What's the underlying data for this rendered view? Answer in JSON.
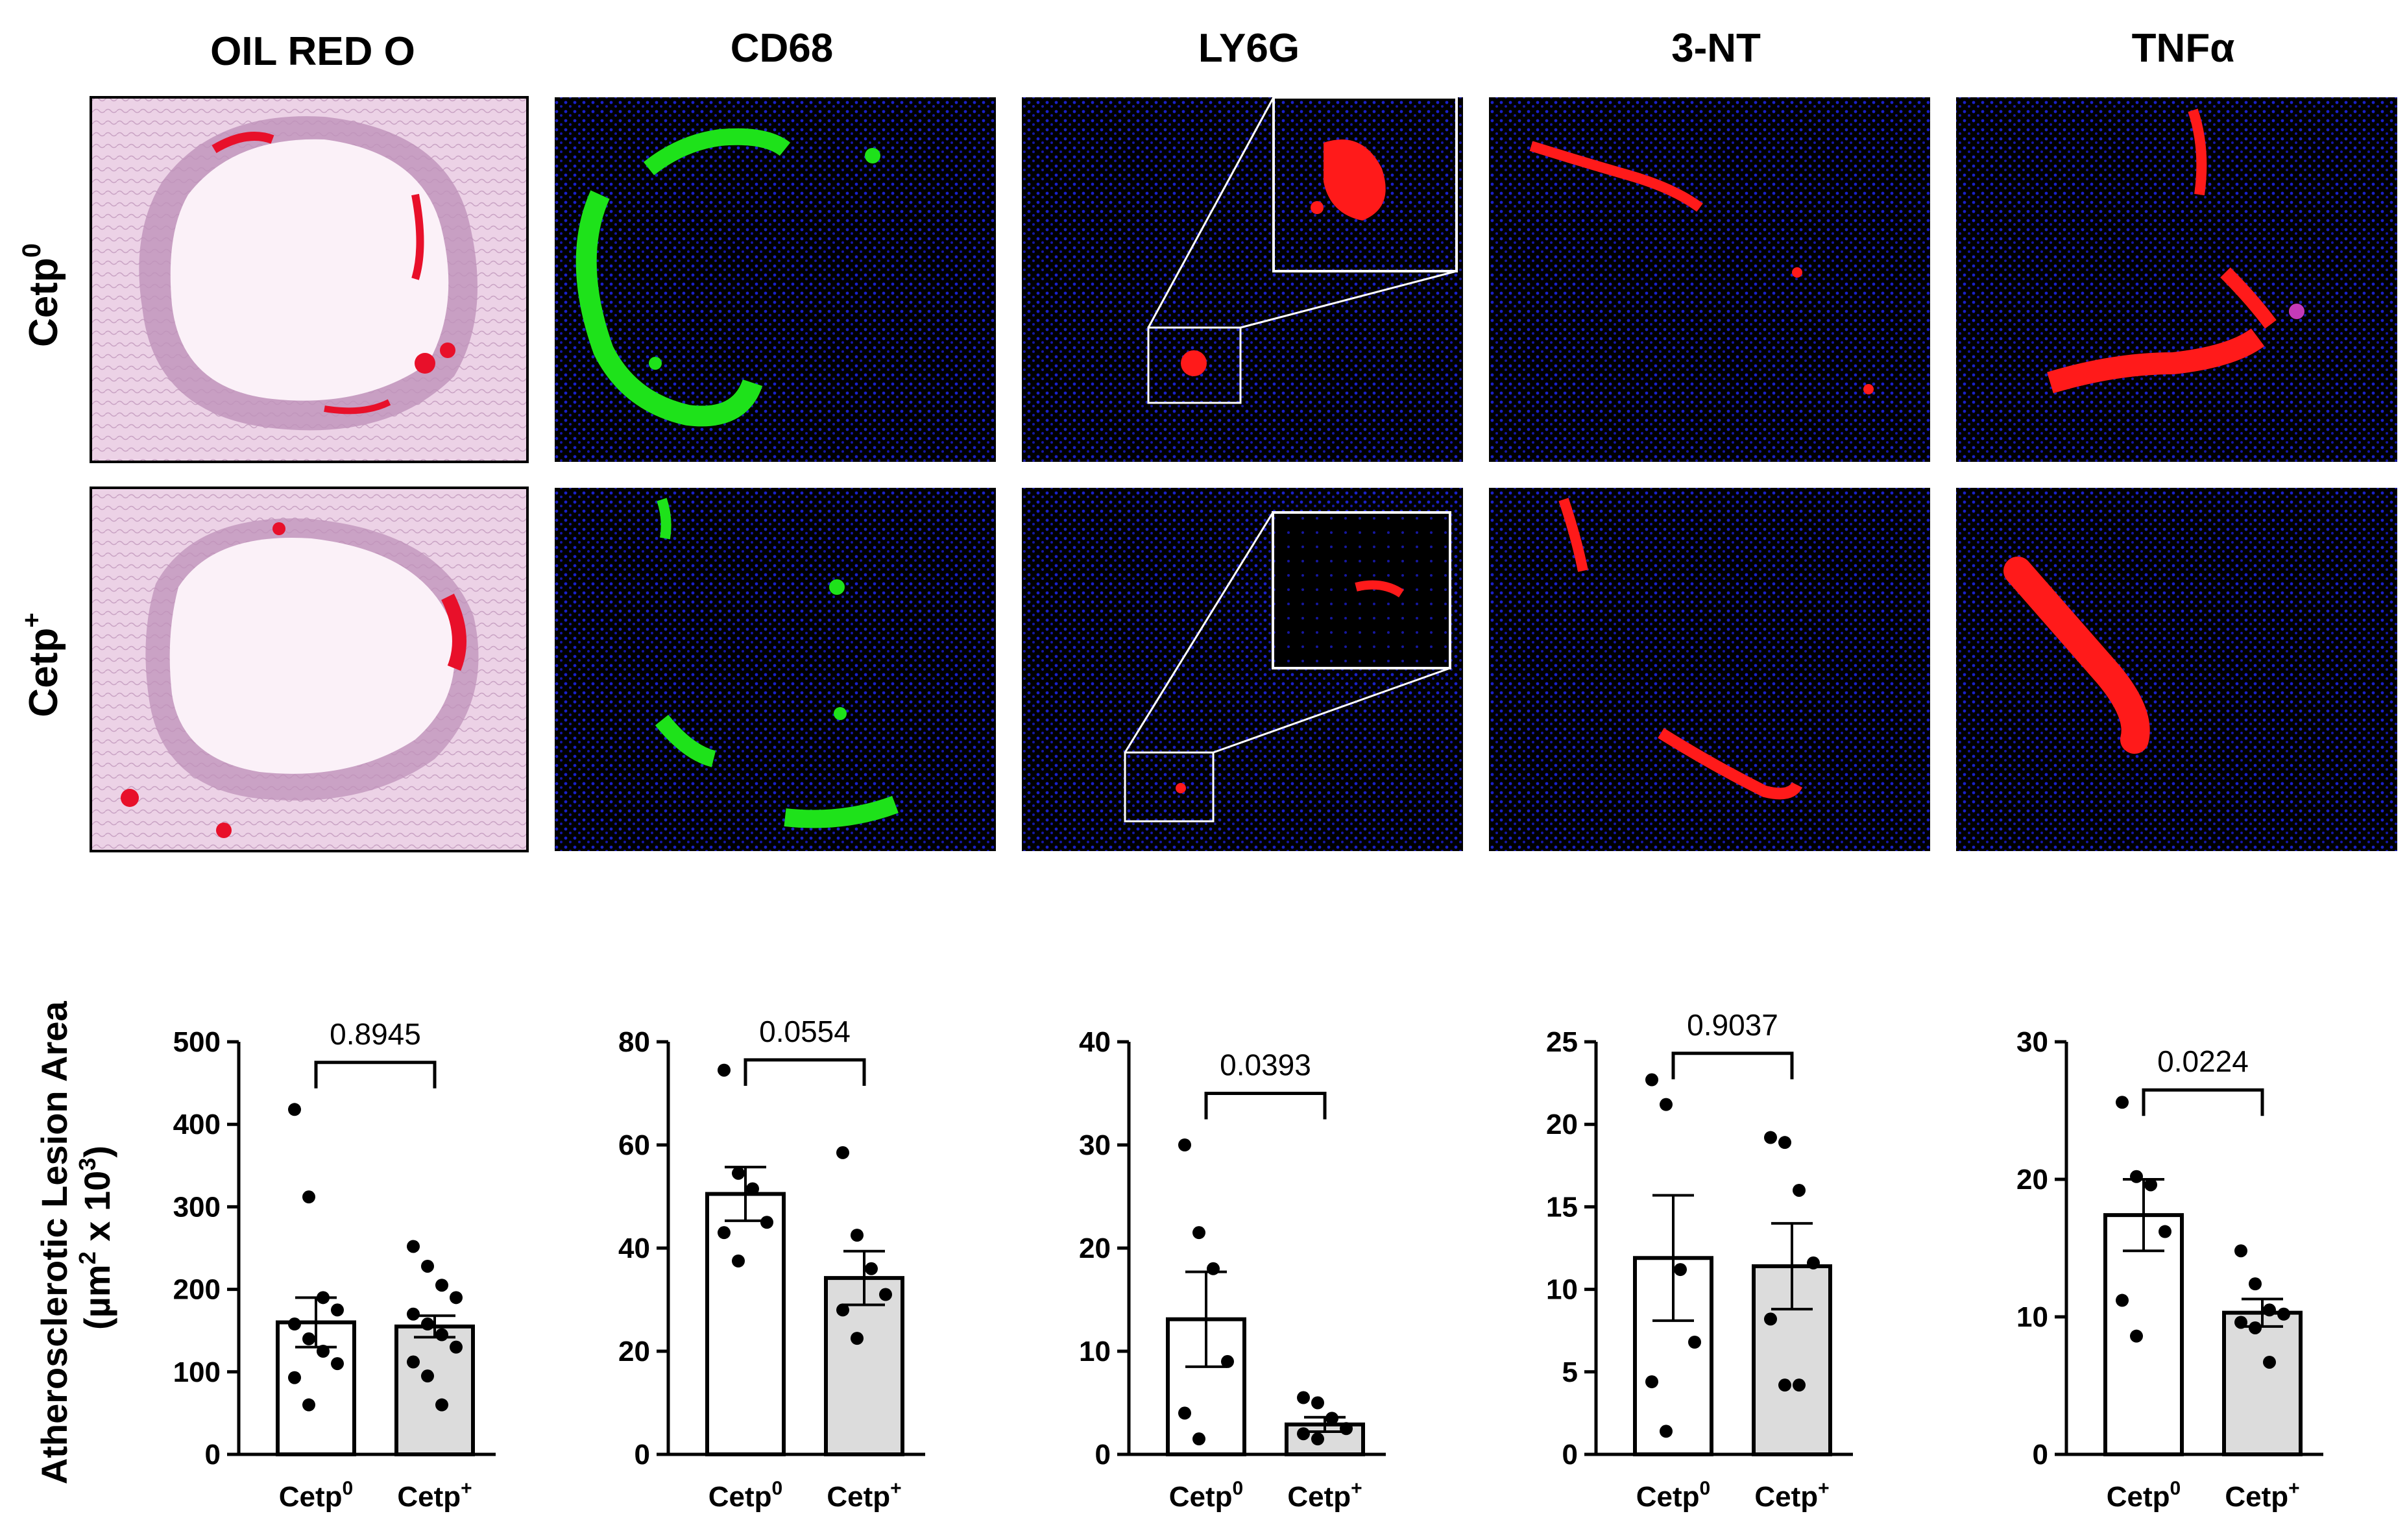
{
  "columns": [
    "OIL RED O",
    "CD68",
    "LY6G",
    "3-NT",
    "TNFα"
  ],
  "rows": [
    {
      "base": "Cetp",
      "sup": "0"
    },
    {
      "base": "Cetp",
      "sup": "+"
    }
  ],
  "y_axis_label": {
    "line1": "Atherosclerotic Lesion Area",
    "line2_pre": "(µm",
    "line2_sup1": "2",
    "line2_mid": " x 10",
    "line2_sup2": "3",
    "line2_post": ")"
  },
  "colors": {
    "oil_bg": "#f1d8ec",
    "oil_tissue": "#b98ab5",
    "oil_lumen": "#fbf1f8",
    "oil_lipid": "#e8102a",
    "fluor_bg": "#000000",
    "nuclei": "#1a20c8",
    "green": "#1ee21a",
    "red": "#ff1a1a",
    "bar_cetp0": "#ffffff",
    "bar_cetpplus": "#dcdcdc",
    "ink": "#000000"
  },
  "chart_data": [
    {
      "type": "bar",
      "categories": [
        "Cetp0",
        "Cetp+"
      ],
      "category_labels": [
        {
          "base": "Cetp",
          "sup": "0"
        },
        {
          "base": "Cetp",
          "sup": "+"
        }
      ],
      "values": [
        160,
        155
      ],
      "errors": [
        30,
        13
      ],
      "points": [
        [
          418,
          312,
          190,
          175,
          158,
          140,
          125,
          110,
          93,
          60
        ],
        [
          252,
          228,
          205,
          190,
          170,
          158,
          145,
          130,
          112,
          95,
          60
        ]
      ],
      "ylim": [
        0,
        500
      ],
      "yticks": [
        0,
        100,
        200,
        300,
        400,
        500
      ],
      "pvalue": "0.8945",
      "bracket_y": 475
    },
    {
      "type": "bar",
      "categories": [
        "Cetp0",
        "Cetp+"
      ],
      "category_labels": [
        {
          "base": "Cetp",
          "sup": "0"
        },
        {
          "base": "Cetp",
          "sup": "+"
        }
      ],
      "values": [
        50.5,
        34.2
      ],
      "errors": [
        5.2,
        5.2
      ],
      "points": [
        [
          74.5,
          54.5,
          51.5,
          45,
          43,
          37.5
        ],
        [
          58.5,
          42.5,
          36,
          31,
          28,
          22.5
        ]
      ],
      "ylim": [
        0,
        80
      ],
      "yticks": [
        0,
        20,
        40,
        60,
        80
      ],
      "pvalue": "0.0554",
      "bracket_y": 76.5
    },
    {
      "type": "bar",
      "categories": [
        "Cetp0",
        "Cetp+"
      ],
      "category_labels": [
        {
          "base": "Cetp",
          "sup": "0"
        },
        {
          "base": "Cetp",
          "sup": "+"
        }
      ],
      "values": [
        13.1,
        2.9
      ],
      "errors": [
        4.6,
        0.7
      ],
      "points": [
        [
          30,
          21.5,
          18,
          9,
          4,
          1.5
        ],
        [
          5.5,
          5,
          3.5,
          2.5,
          2,
          1.5
        ]
      ],
      "ylim": [
        0,
        40
      ],
      "yticks": [
        0,
        10,
        20,
        30,
        40
      ],
      "pvalue": "0.0393",
      "bracket_y": 35
    },
    {
      "type": "bar",
      "categories": [
        "Cetp0",
        "Cetp+"
      ],
      "category_labels": [
        {
          "base": "Cetp",
          "sup": "0"
        },
        {
          "base": "Cetp",
          "sup": "+"
        }
      ],
      "values": [
        11.9,
        11.4
      ],
      "errors": [
        3.8,
        2.6
      ],
      "points": [
        [
          22.7,
          21.2,
          11.2,
          6.8,
          4.4,
          1.4
        ],
        [
          19.2,
          18.9,
          16,
          11.6,
          8.2,
          4.2,
          4.2
        ]
      ],
      "ylim": [
        0,
        25
      ],
      "yticks": [
        0,
        5,
        10,
        15,
        20,
        25
      ],
      "pvalue": "0.9037",
      "bracket_y": 24.3
    },
    {
      "type": "bar",
      "categories": [
        "Cetp0",
        "Cetp+"
      ],
      "category_labels": [
        {
          "base": "Cetp",
          "sup": "0"
        },
        {
          "base": "Cetp",
          "sup": "+"
        }
      ],
      "values": [
        17.4,
        10.3
      ],
      "errors": [
        2.6,
        1.0
      ],
      "points": [
        [
          25.6,
          20.2,
          19.6,
          16.2,
          11.2,
          8.6
        ],
        [
          14.8,
          12.4,
          10.5,
          10.2,
          9.6,
          9.2,
          6.7
        ]
      ],
      "ylim": [
        0,
        30
      ],
      "yticks": [
        0,
        10,
        20,
        30
      ],
      "pvalue": "0.0224",
      "bracket_y": 26.5
    }
  ]
}
